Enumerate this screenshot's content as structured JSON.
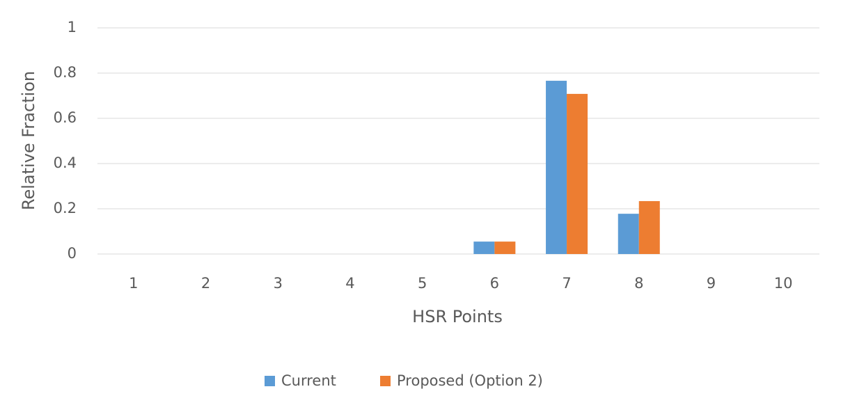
{
  "chart_data": {
    "type": "bar",
    "x_label": "HSR Points",
    "y_label": "Relative Fraction",
    "categories": [
      1,
      2,
      3,
      4,
      5,
      6,
      7,
      8,
      9,
      10
    ],
    "series": [
      {
        "name": "Current",
        "color": "#5b9bd5",
        "values": [
          0,
          0,
          0,
          0,
          0,
          0.055,
          0.766,
          0.178,
          0,
          0
        ]
      },
      {
        "name": "Proposed (Option 2)",
        "color": "#ed7d31",
        "values": [
          0,
          0,
          0,
          0,
          0,
          0.055,
          0.708,
          0.234,
          0,
          0
        ]
      }
    ],
    "ylim": [
      0,
      1
    ],
    "yticks": [
      0,
      0.2,
      0.4,
      0.6,
      0.8,
      1
    ],
    "grid": true,
    "legend": "bottom"
  }
}
